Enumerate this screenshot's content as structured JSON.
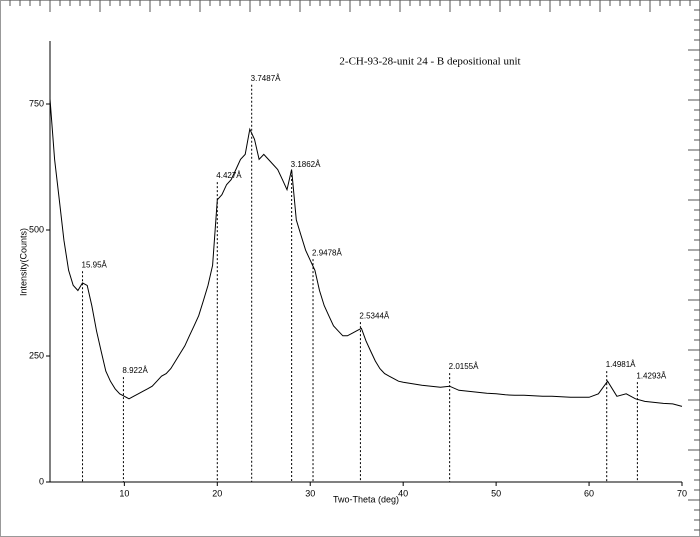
{
  "chart_data": {
    "type": "line",
    "title": "2-CH-93-28-unit 24 - B depositional unit",
    "x_label": "Two-Theta (deg)",
    "y_label": "Intensity(Counts)",
    "xlim": [
      2,
      70
    ],
    "ylim": [
      0,
      875
    ],
    "xticks": [
      10,
      20,
      30,
      40,
      50,
      60,
      70
    ],
    "yticks": [
      0,
      250,
      500,
      750
    ],
    "x": [
      2,
      2.5,
      3,
      3.5,
      4,
      4.5,
      5,
      5.5,
      6,
      6.5,
      7,
      7.5,
      8,
      8.5,
      9,
      9.5,
      10,
      10.5,
      11,
      11.5,
      12,
      12.5,
      13,
      13.5,
      14,
      14.5,
      15,
      15.5,
      16,
      16.5,
      17,
      17.5,
      18,
      18.5,
      19,
      19.5,
      20,
      20.5,
      21,
      21.5,
      22,
      22.5,
      23,
      23.5,
      24,
      24.5,
      25,
      25.5,
      26,
      26.5,
      27,
      27.5,
      28,
      28.5,
      29,
      29.5,
      30,
      30.5,
      31,
      31.5,
      32,
      32.5,
      33,
      33.5,
      34,
      34.5,
      35,
      35.5,
      36,
      36.5,
      37,
      37.5,
      38,
      38.5,
      39,
      39.5,
      40,
      41,
      42,
      43,
      44,
      45,
      46,
      47,
      48,
      49,
      50,
      51,
      52,
      53,
      54,
      55,
      56,
      57,
      58,
      59,
      60,
      61,
      62,
      63,
      64,
      65,
      66,
      67,
      68,
      69,
      70
    ],
    "series": [
      {
        "color": "#000000",
        "values": [
          760,
          640,
          560,
          480,
          420,
          390,
          380,
          395,
          390,
          350,
          300,
          260,
          220,
          200,
          185,
          175,
          170,
          165,
          170,
          175,
          180,
          185,
          190,
          200,
          210,
          215,
          225,
          240,
          255,
          270,
          290,
          310,
          330,
          360,
          390,
          430,
          560,
          570,
          590,
          600,
          620,
          640,
          650,
          700,
          680,
          640,
          650,
          640,
          630,
          620,
          600,
          580,
          620,
          520,
          490,
          460,
          440,
          420,
          380,
          350,
          330,
          310,
          300,
          290,
          290,
          295,
          300,
          305,
          280,
          260,
          240,
          225,
          215,
          210,
          205,
          200,
          198,
          195,
          192,
          190,
          188,
          190,
          182,
          180,
          178,
          176,
          175,
          173,
          172,
          172,
          171,
          170,
          170,
          169,
          168,
          168,
          168,
          175,
          200,
          170,
          175,
          165,
          160,
          158,
          156,
          155,
          150
        ]
      }
    ],
    "annotations": [
      {
        "x": 5.5,
        "y": 430,
        "label": "15.95Å"
      },
      {
        "x": 9.9,
        "y": 220,
        "label": "8.922Å"
      },
      {
        "x": 20.0,
        "y": 607,
        "label": "4.427Å"
      },
      {
        "x": 23.7,
        "y": 800,
        "label": "3.7487Å"
      },
      {
        "x": 28.0,
        "y": 629,
        "label": "3.1862Å"
      },
      {
        "x": 30.3,
        "y": 454,
        "label": "2.9478Å"
      },
      {
        "x": 35.4,
        "y": 329,
        "label": "2.5344Å"
      },
      {
        "x": 45.0,
        "y": 228,
        "label": "2.0155Å"
      },
      {
        "x": 61.9,
        "y": 232,
        "label": "1.4981Å"
      },
      {
        "x": 65.2,
        "y": 210,
        "label": "1.4293Å"
      }
    ]
  }
}
